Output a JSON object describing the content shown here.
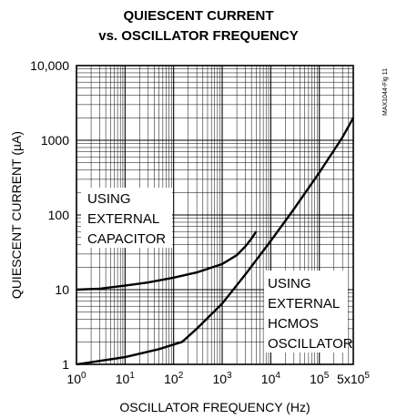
{
  "chart_data": {
    "type": "line",
    "title_lines": [
      "QUIESCENT CURRENT",
      "vs. OSCILLATOR FREQUENCY"
    ],
    "xlabel": "OSCILLATOR FREQUENCY (Hz)",
    "ylabel": "QUIESCENT CURRENT (µA)",
    "fig_id": "MAX1044-Fig 11",
    "x_scale": "log",
    "y_scale": "log",
    "xlim": [
      1,
      500000
    ],
    "ylim": [
      1,
      10000
    ],
    "grid": true,
    "x_ticks": [
      {
        "value": 1,
        "base": "10",
        "exp": "0"
      },
      {
        "value": 10,
        "base": "10",
        "exp": "1"
      },
      {
        "value": 100,
        "base": "10",
        "exp": "2"
      },
      {
        "value": 1000,
        "base": "10",
        "exp": "3"
      },
      {
        "value": 10000,
        "base": "10",
        "exp": "4"
      },
      {
        "value": 100000,
        "base": "10",
        "exp": "5"
      },
      {
        "value": 500000,
        "base": "5x10",
        "exp": "5"
      }
    ],
    "y_ticks": [
      {
        "value": 1,
        "label": "1"
      },
      {
        "value": 10,
        "label": "10"
      },
      {
        "value": 100,
        "label": "100"
      },
      {
        "value": 1000,
        "label": "1000"
      },
      {
        "value": 10000,
        "label": "10,000"
      }
    ],
    "series": [
      {
        "name": "USING EXTERNAL CAPACITOR",
        "label_lines": [
          "USING",
          "EXTERNAL",
          "CAPACITOR"
        ],
        "x": [
          1,
          3,
          10,
          30,
          100,
          300,
          1000,
          2000,
          3000,
          4000,
          5000
        ],
        "y": [
          10,
          10.3,
          11.3,
          12.5,
          14.5,
          17,
          22,
          29,
          38,
          48,
          60
        ]
      },
      {
        "name": "USING EXTERNAL HCMOS OSCILLATOR",
        "label_lines": [
          "USING",
          "EXTERNAL",
          "HCMOS",
          "OSCILLATOR"
        ],
        "x": [
          1,
          10,
          50,
          150,
          300,
          1000,
          3000,
          10000,
          30000,
          100000,
          300000,
          500000
        ],
        "y": [
          1,
          1.25,
          1.6,
          2,
          3,
          6.5,
          16,
          45,
          120,
          370,
          1100,
          2000
        ]
      }
    ]
  }
}
